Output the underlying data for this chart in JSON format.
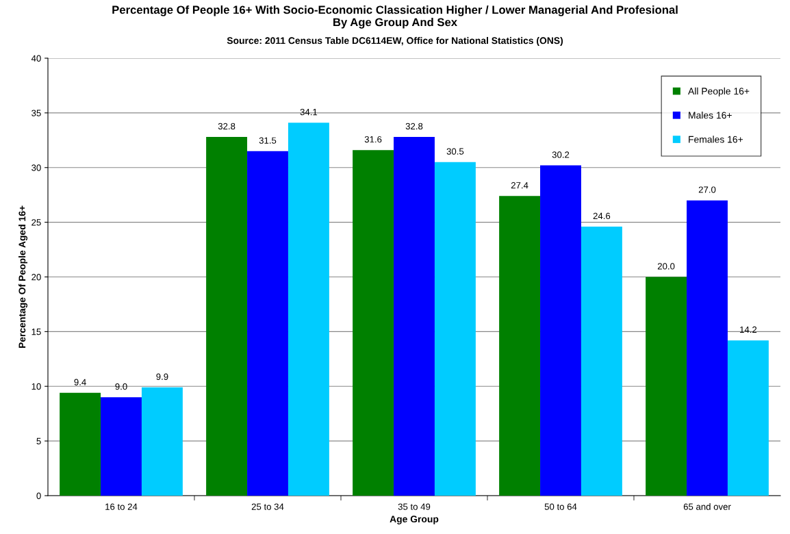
{
  "chart_data": {
    "type": "bar",
    "title": "Percentage Of People 16+ With Socio-Economic Classication Higher / Lower Managerial And Profesional\nBy Age Group And Sex",
    "subtitle": "Source: 2011 Census Table DC6114EW, Office for National Statistics (ONS)",
    "xlabel": "Age Group",
    "ylabel": "Percentage Of People Aged 16+",
    "categories": [
      "16 to 24",
      "25 to 34",
      "35 to 49",
      "50 to 64",
      "65 and over"
    ],
    "series": [
      {
        "name": "All People 16+",
        "color": "#008000",
        "values": [
          9.4,
          32.8,
          31.6,
          27.4,
          20.0
        ],
        "value_labels": [
          "9.4",
          "32.8",
          "31.6",
          "27.4",
          "20.0"
        ]
      },
      {
        "name": "Males 16+",
        "color": "#0000ff",
        "values": [
          9.0,
          31.5,
          32.8,
          30.2,
          27.0
        ],
        "value_labels": [
          "9.0",
          "31.5",
          "32.8",
          "30.2",
          "27.0"
        ]
      },
      {
        "name": "Females 16+",
        "color": "#00ccff",
        "values": [
          9.9,
          34.1,
          30.5,
          24.6,
          14.2
        ],
        "value_labels": [
          "9.9",
          "34.1",
          "30.5",
          "24.6",
          "14.2"
        ]
      }
    ],
    "ylim": [
      0,
      40
    ],
    "yticks": [
      0,
      5,
      10,
      15,
      20,
      25,
      30,
      35,
      40
    ],
    "grid": "y",
    "legend": "top right"
  }
}
